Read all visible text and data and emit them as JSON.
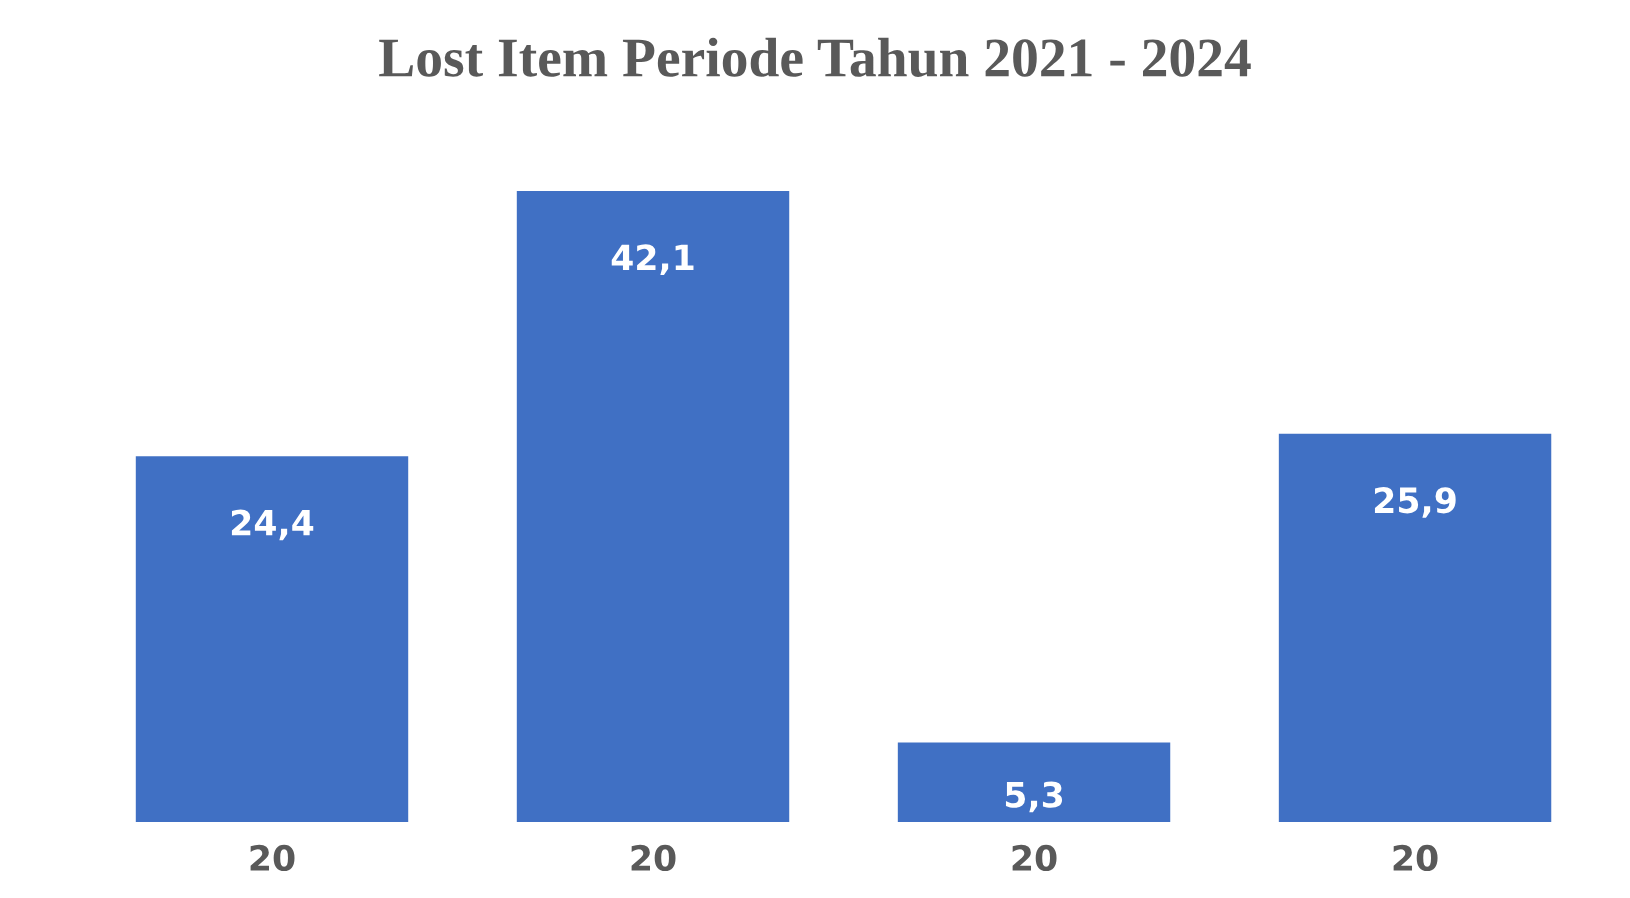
{
  "chart_data": {
    "type": "bar",
    "title": "Lost Item Periode Tahun 2021 - 2024",
    "categories": [
      "20",
      "20",
      "20",
      "20"
    ],
    "values": [
      24.4,
      42.1,
      5.3,
      25.9
    ],
    "value_labels": [
      "24,4",
      "42,1",
      "5,3",
      "25,9"
    ],
    "color": "#4070c4",
    "grid": false
  }
}
